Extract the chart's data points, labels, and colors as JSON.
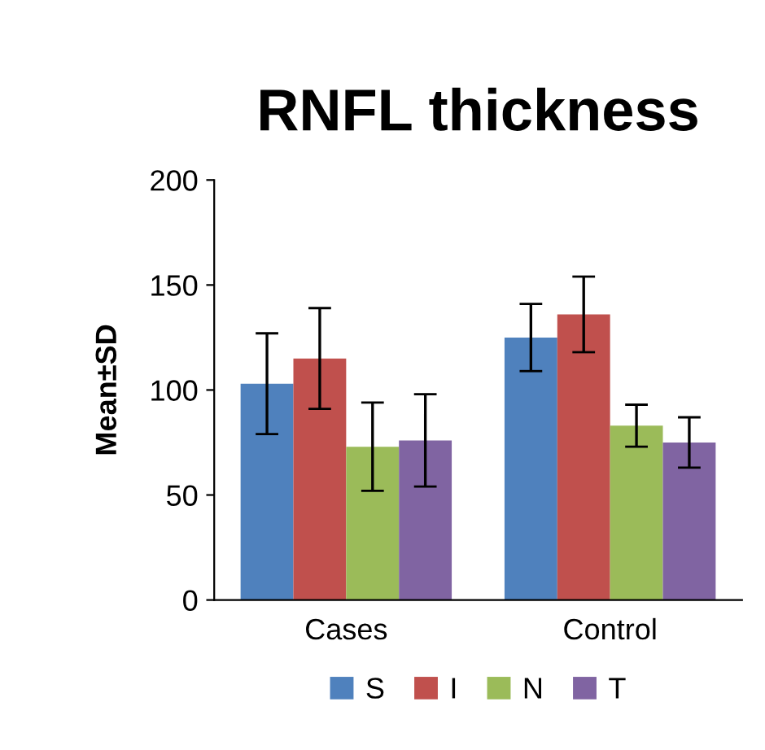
{
  "chart_data": {
    "type": "bar",
    "title": "RNFL thickness",
    "ylabel": "Mean±SD",
    "categories": [
      "Cases",
      "Control"
    ],
    "series": [
      {
        "name": "S",
        "color": "#4f81bd",
        "values": [
          103,
          125
        ],
        "errors": [
          24,
          16
        ]
      },
      {
        "name": "I",
        "color": "#c0504d",
        "values": [
          115,
          136
        ],
        "errors": [
          24,
          18
        ]
      },
      {
        "name": "N",
        "color": "#9bbb59",
        "values": [
          73,
          83
        ],
        "errors": [
          21,
          10
        ]
      },
      {
        "name": "T",
        "color": "#8064a2",
        "values": [
          76,
          75
        ],
        "errors": [
          22,
          12
        ]
      }
    ],
    "ylim": [
      0,
      200
    ],
    "yticks": [
      0,
      50,
      100,
      150,
      200
    ],
    "grid": false,
    "legend": "bottom"
  }
}
